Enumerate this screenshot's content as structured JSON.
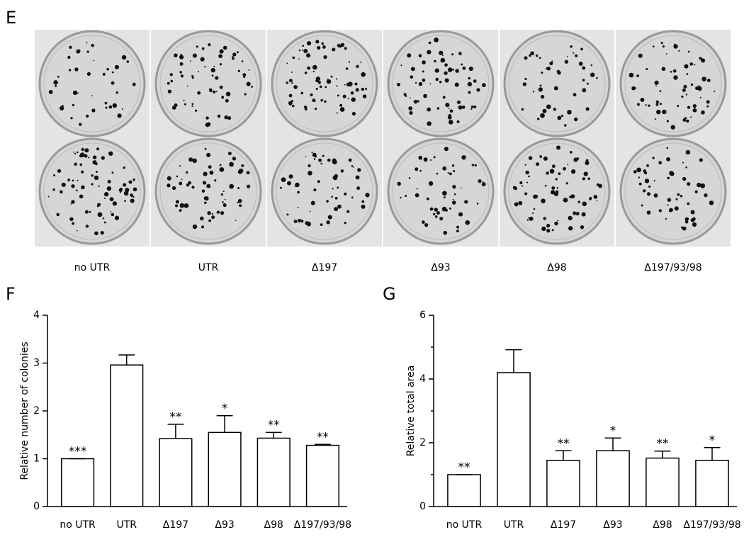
{
  "panel_e": {
    "label": "E",
    "plate_labels": [
      "no UTR",
      "UTR",
      "Δ197",
      "Δ93",
      "Δ98",
      "Δ197/93/98"
    ]
  },
  "chart_data": [
    {
      "type": "bar",
      "panel_label": "F",
      "ylabel": "Relative number of colonies",
      "categories": [
        "no UTR",
        "UTR",
        "Δ197",
        "Δ93",
        "Δ98",
        "Δ197/93/98"
      ],
      "values": [
        1.0,
        2.96,
        1.42,
        1.55,
        1.43,
        1.28
      ],
      "errors": [
        0,
        0.21,
        0.3,
        0.35,
        0.12,
        0.02
      ],
      "annotations": [
        "***",
        null,
        "**",
        "*",
        "**",
        "**"
      ],
      "color": "#ffffff",
      "ylim": [
        0,
        4
      ],
      "yticks": [
        0,
        1,
        2,
        3,
        4
      ]
    },
    {
      "type": "bar",
      "panel_label": "G",
      "ylabel": "Relative total area",
      "categories": [
        "no UTR",
        "UTR",
        "Δ197",
        "Δ93",
        "Δ98",
        "Δ197/93/98"
      ],
      "values": [
        1.0,
        4.2,
        1.45,
        1.75,
        1.52,
        1.45
      ],
      "errors": [
        0,
        0.72,
        0.3,
        0.4,
        0.22,
        0.4
      ],
      "annotations": [
        "**",
        null,
        "**",
        "*",
        "**",
        "*"
      ],
      "color": "#ffffff",
      "ylim": [
        0,
        6
      ],
      "yticks": [
        0,
        2,
        4,
        6
      ],
      "yminorticks": [
        1,
        3,
        5
      ]
    }
  ]
}
